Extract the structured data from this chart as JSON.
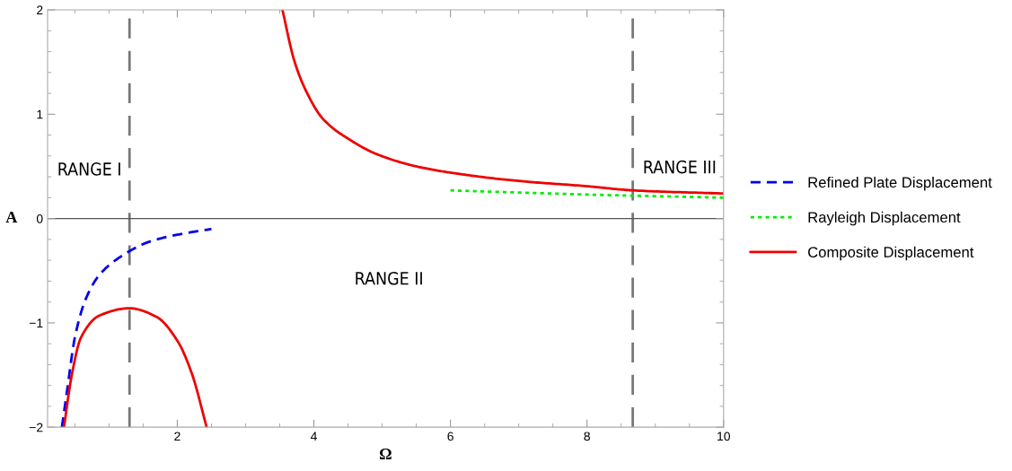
{
  "chart_data": {
    "type": "line",
    "xlabel": "Ω",
    "ylabel": "A",
    "xlim": [
      0.1,
      10
    ],
    "ylim": [
      -2,
      2
    ],
    "xticks": [
      2,
      4,
      6,
      8,
      10
    ],
    "yticks": [
      -2,
      -1,
      0,
      1,
      2
    ],
    "grid": false,
    "legend": "right",
    "series": [
      {
        "name": "Refined Plate Displacement",
        "color": "#0000ee",
        "line_style": "dashed",
        "x": [
          0.31,
          0.39,
          0.5,
          0.66,
          0.86,
          1.16,
          1.6,
          2.04,
          2.5
        ],
        "values": [
          -2,
          -1.63,
          -1.14,
          -0.77,
          -0.54,
          -0.37,
          -0.22,
          -0.15,
          -0.1
        ]
      },
      {
        "name": "Rayleigh Displacement",
        "color": "#00ee00",
        "line_style": "dotted",
        "x": [
          6,
          8,
          10
        ],
        "values": [
          0.27,
          0.23,
          0.2
        ]
      },
      {
        "name": "Composite Displacement",
        "color": "#ee0000",
        "line_style": "solid",
        "x": [
          0.34,
          0.46,
          0.59,
          0.86,
          1.3,
          1.69,
          2.0,
          2.21,
          2.43,
          null,
          3.54,
          3.71,
          3.88,
          4.14,
          4.54,
          4.91,
          5.5,
          6,
          7,
          8,
          8.67,
          10
        ],
        "values": [
          -2,
          -1.48,
          -1.14,
          -0.93,
          -0.86,
          -0.94,
          -1.17,
          -1.48,
          -2,
          null,
          2,
          1.52,
          1.23,
          0.95,
          0.75,
          0.62,
          0.5,
          0.44,
          0.36,
          0.31,
          0.27,
          0.24
        ]
      }
    ],
    "ref_lines": [
      {
        "axis": "x",
        "value": 1.3,
        "color": "#777777",
        "line_style": "dashed"
      },
      {
        "axis": "x",
        "value": 8.67,
        "color": "#777777",
        "line_style": "dashed"
      },
      {
        "axis": "y",
        "value": 0,
        "color": "#555555",
        "line_style": "solid"
      }
    ],
    "annotations": [
      "RANGE I",
      "RANGE II",
      "RANGE III"
    ]
  }
}
